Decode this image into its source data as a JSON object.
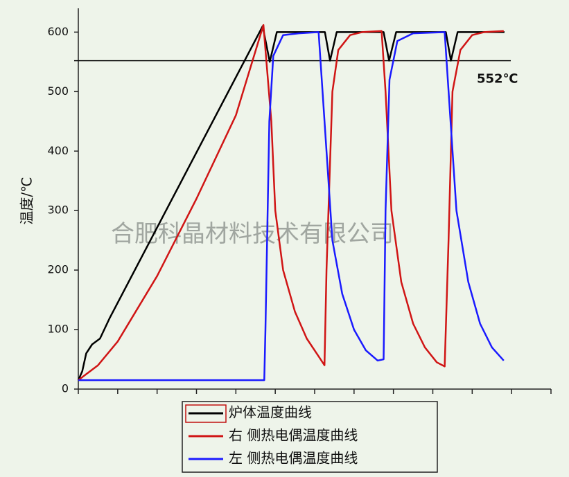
{
  "chart_data": {
    "type": "line",
    "y_label": "温度/℃",
    "watermark": "合肥科晶材料技术有限公司",
    "xlim": [
      0,
      12
    ],
    "ylim": [
      0,
      640
    ],
    "yticks": [
      0,
      100,
      200,
      300,
      400,
      500,
      600
    ],
    "reference_line": {
      "value": 552,
      "label": "552℃"
    },
    "series": [
      {
        "name": "炉体温度曲线",
        "color": "#000000",
        "x": [
          0,
          0.1,
          0.2,
          0.35,
          0.55,
          0.8,
          4.68,
          4.86,
          5.04,
          6.26,
          6.39,
          6.56,
          7.75,
          7.89,
          8.07,
          9.33,
          9.46,
          9.63,
          10.82
        ],
        "values": [
          15,
          30,
          60,
          75,
          85,
          120,
          610,
          550,
          600,
          600,
          552,
          600,
          600,
          552,
          600,
          600,
          552,
          600,
          600
        ]
      },
      {
        "name": "右  侧热电偶温度曲线",
        "color": "#d01515",
        "x": [
          0,
          0.5,
          1,
          2,
          3,
          4,
          4.7,
          4.9,
          5.0,
          5.2,
          5.5,
          5.8,
          6.1,
          6.25,
          6.3,
          6.45,
          6.6,
          6.9,
          7.2,
          7.7,
          7.8,
          7.95,
          8.2,
          8.5,
          8.8,
          9.1,
          9.3,
          9.4,
          9.5,
          9.7,
          10,
          10.3,
          10.8
        ],
        "values": [
          15,
          40,
          80,
          190,
          320,
          460,
          612,
          450,
          300,
          200,
          130,
          85,
          55,
          40,
          200,
          500,
          570,
          595,
          600,
          602,
          500,
          300,
          180,
          110,
          70,
          45,
          38,
          250,
          500,
          570,
          595,
          600,
          602
        ]
      },
      {
        "name": "左  侧热电偶温度曲线",
        "color": "#1a1aff",
        "x": [
          0,
          4.72,
          4.75,
          4.85,
          4.95,
          5.2,
          5.6,
          6.1,
          6.3,
          6.45,
          6.7,
          7,
          7.3,
          7.6,
          7.75,
          7.8,
          7.9,
          8.1,
          8.5,
          9.3,
          9.45,
          9.6,
          9.9,
          10.2,
          10.5,
          10.8
        ],
        "values": [
          15,
          15,
          100,
          450,
          560,
          595,
          598,
          600,
          400,
          250,
          160,
          100,
          65,
          48,
          50,
          300,
          520,
          585,
          598,
          600,
          450,
          300,
          180,
          110,
          70,
          48
        ]
      }
    ]
  }
}
